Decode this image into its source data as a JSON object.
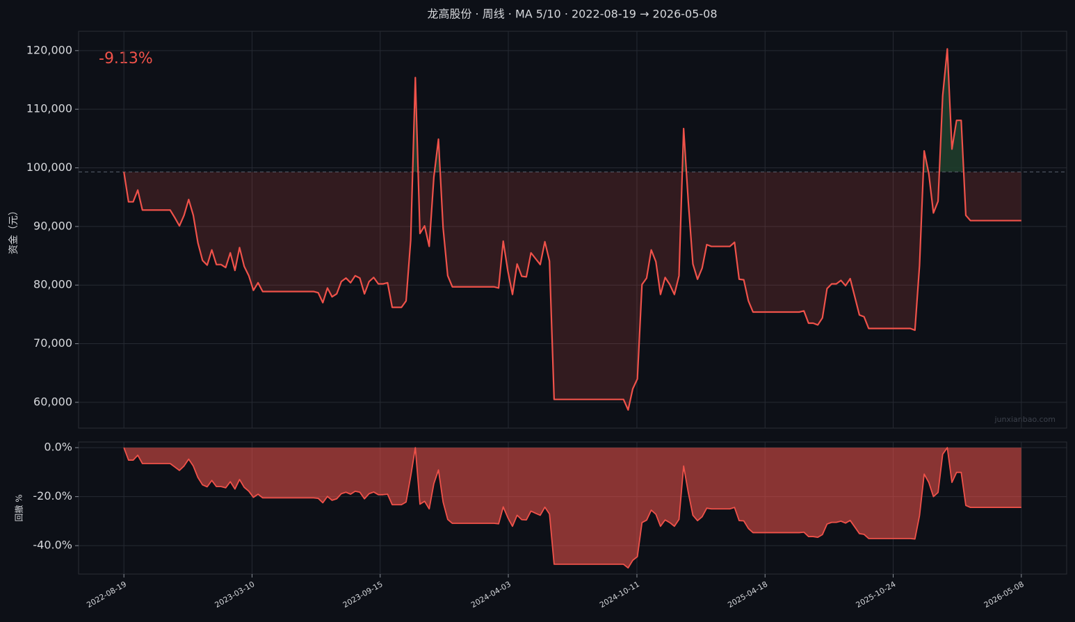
{
  "chart_data": [
    {
      "type": "line",
      "title": "龙高股份 · 周线 · MA 5/10 · 2022-08-19 → 2026-05-08",
      "annotation": "-9.13%",
      "watermark": "junxianbao.com",
      "ylabel": "资金（元）",
      "baseline": 99300,
      "xlim": [
        -9.8,
        203.8
      ],
      "ylim": [
        55600,
        123300
      ],
      "yticks": [
        {
          "value": 60000,
          "label": "60,000"
        },
        {
          "value": 70000,
          "label": "70,000"
        },
        {
          "value": 80000,
          "label": "80,000"
        },
        {
          "value": 90000,
          "label": "90,000"
        },
        {
          "value": 100000,
          "label": "100,000"
        },
        {
          "value": 110000,
          "label": "110,000"
        },
        {
          "value": 120000,
          "label": "120,000"
        }
      ],
      "grid": true,
      "x": [
        0,
        1,
        2,
        3,
        4,
        10,
        11,
        12,
        13,
        14,
        15,
        16,
        17,
        18,
        19,
        20,
        21,
        22,
        23,
        24,
        25,
        26,
        27,
        28,
        29,
        30,
        41,
        42,
        43,
        44,
        45,
        46,
        47,
        48,
        49,
        50,
        51,
        52,
        53,
        54,
        55,
        56,
        57,
        58,
        60,
        61,
        62,
        63,
        64,
        65,
        66,
        67,
        68,
        69,
        70,
        71,
        80,
        81,
        82,
        83,
        84,
        85,
        86,
        87,
        88,
        89,
        90,
        91,
        92,
        93,
        108,
        109,
        110,
        111,
        112,
        113,
        114,
        115,
        116,
        117,
        118,
        119,
        120,
        121,
        122,
        123,
        124,
        125,
        126,
        127,
        131,
        132,
        133,
        134,
        135,
        136,
        146,
        147,
        148,
        149,
        150,
        151,
        152,
        153,
        154,
        155,
        156,
        157,
        158,
        159,
        160,
        161,
        170,
        171,
        172,
        173,
        174,
        175,
        176,
        177,
        178,
        179,
        180,
        181,
        182,
        183,
        194
      ],
      "series": [
        {
          "color": "#f0524a",
          "values": [
            99300,
            94200,
            94200,
            96200,
            92800,
            92800,
            91500,
            90100,
            91900,
            94600,
            91900,
            87200,
            84200,
            83400,
            86000,
            83500,
            83500,
            83000,
            85500,
            82500,
            86400,
            83200,
            81600,
            79100,
            80400,
            78900,
            78900,
            78700,
            77000,
            79500,
            78000,
            78500,
            80600,
            81200,
            80400,
            81600,
            81200,
            78500,
            80600,
            81300,
            80200,
            80200,
            80400,
            76200,
            76200,
            77300,
            87700,
            115400,
            88800,
            90100,
            86600,
            98400,
            104900,
            89800,
            81600,
            79700,
            79700,
            79500,
            87500,
            82400,
            78400,
            83600,
            81500,
            81400,
            85500,
            84500,
            83500,
            87400,
            84100,
            60500,
            60500,
            58700,
            62300,
            64000,
            80100,
            81200,
            86000,
            84000,
            78400,
            81300,
            80100,
            78400,
            81600,
            106700,
            94300,
            83600,
            81000,
            82900,
            86900,
            86600,
            86600,
            87300,
            81000,
            80900,
            77300,
            75400,
            75400,
            75600,
            73500,
            73500,
            73200,
            74400,
            79400,
            80200,
            80200,
            80800,
            79900,
            81100,
            78000,
            74900,
            74600,
            72600,
            72600,
            72300,
            83400,
            102900,
            99000,
            92300,
            94300,
            112300,
            120300,
            103200,
            108100,
            108100,
            91900,
            91000,
            91000
          ]
        }
      ]
    },
    {
      "type": "area",
      "ylabel": "回撤 %",
      "xlim": [
        -9.8,
        203.8
      ],
      "ylim": [
        -51.6,
        2.3
      ],
      "yticks": [
        {
          "value": 0,
          "label": "0.0%"
        },
        {
          "value": -20,
          "label": "-20.0%"
        },
        {
          "value": -40,
          "label": "-40.0%"
        }
      ],
      "xticks": [
        {
          "value": 0,
          "label": "2022-08-19"
        },
        {
          "value": 27.7,
          "label": "2023-03-10"
        },
        {
          "value": 55.4,
          "label": "2023-09-15"
        },
        {
          "value": 83.1,
          "label": "2024-04-03"
        },
        {
          "value": 110.9,
          "label": "2024-10-11"
        },
        {
          "value": 138.6,
          "label": "2025-04-18"
        },
        {
          "value": 166.3,
          "label": "2025-10-24"
        },
        {
          "value": 194,
          "label": "2026-05-08"
        }
      ],
      "grid": true,
      "x": [
        0,
        1,
        2,
        3,
        4,
        10,
        11,
        12,
        13,
        14,
        15,
        16,
        17,
        18,
        19,
        20,
        21,
        22,
        23,
        24,
        25,
        26,
        27,
        28,
        29,
        30,
        41,
        42,
        43,
        44,
        45,
        46,
        47,
        48,
        49,
        50,
        51,
        52,
        53,
        54,
        55,
        56,
        57,
        58,
        60,
        61,
        62,
        63,
        64,
        65,
        66,
        67,
        68,
        69,
        70,
        71,
        80,
        81,
        82,
        83,
        84,
        85,
        86,
        87,
        88,
        89,
        90,
        91,
        92,
        93,
        108,
        109,
        110,
        111,
        112,
        113,
        114,
        115,
        116,
        117,
        118,
        119,
        120,
        121,
        122,
        123,
        124,
        125,
        126,
        127,
        131,
        132,
        133,
        134,
        135,
        136,
        146,
        147,
        148,
        149,
        150,
        151,
        152,
        153,
        154,
        155,
        156,
        157,
        158,
        159,
        160,
        161,
        170,
        171,
        172,
        173,
        174,
        175,
        176,
        177,
        178,
        179,
        180,
        181,
        182,
        183,
        194
      ],
      "series": [
        {
          "color": "#f0524a",
          "values": [
            0,
            -5.1,
            -5.1,
            -3.1,
            -6.5,
            -6.5,
            -7.9,
            -9.3,
            -7.5,
            -4.7,
            -7.5,
            -12.2,
            -15.2,
            -16.0,
            -13.4,
            -15.9,
            -15.9,
            -16.4,
            -13.9,
            -16.9,
            -13.0,
            -16.2,
            -17.8,
            -20.3,
            -19.0,
            -20.5,
            -20.5,
            -20.7,
            -22.5,
            -19.9,
            -21.5,
            -20.9,
            -18.8,
            -18.2,
            -19.0,
            -17.8,
            -18.2,
            -20.9,
            -18.8,
            -18.1,
            -19.2,
            -19.2,
            -19.0,
            -23.3,
            -23.3,
            -22.2,
            -11.7,
            0,
            -23.1,
            -21.9,
            -25.0,
            -14.7,
            -9.1,
            -22.2,
            -29.3,
            -30.9,
            -30.9,
            -31.1,
            -24.2,
            -28.6,
            -32.1,
            -27.6,
            -29.4,
            -29.5,
            -25.9,
            -26.8,
            -27.6,
            -24.3,
            -27.1,
            -47.6,
            -47.6,
            -49.1,
            -46.0,
            -44.5,
            -30.6,
            -29.6,
            -25.5,
            -27.2,
            -32.1,
            -29.5,
            -30.6,
            -32.1,
            -29.3,
            -7.5,
            -18.3,
            -27.6,
            -29.8,
            -28.2,
            -24.7,
            -25.0,
            -25.0,
            -24.4,
            -29.8,
            -29.9,
            -33.0,
            -34.7,
            -34.7,
            -34.5,
            -36.3,
            -36.3,
            -36.6,
            -35.5,
            -31.2,
            -30.5,
            -30.5,
            -30.0,
            -30.8,
            -29.7,
            -32.4,
            -35.1,
            -35.4,
            -37.1,
            -37.1,
            -37.3,
            -27.7,
            -10.8,
            -14.2,
            -20.0,
            -18.3,
            -2.7,
            0,
            -14.2,
            -10.1,
            -10.1,
            -23.6,
            -24.4,
            -24.4
          ]
        }
      ]
    }
  ]
}
